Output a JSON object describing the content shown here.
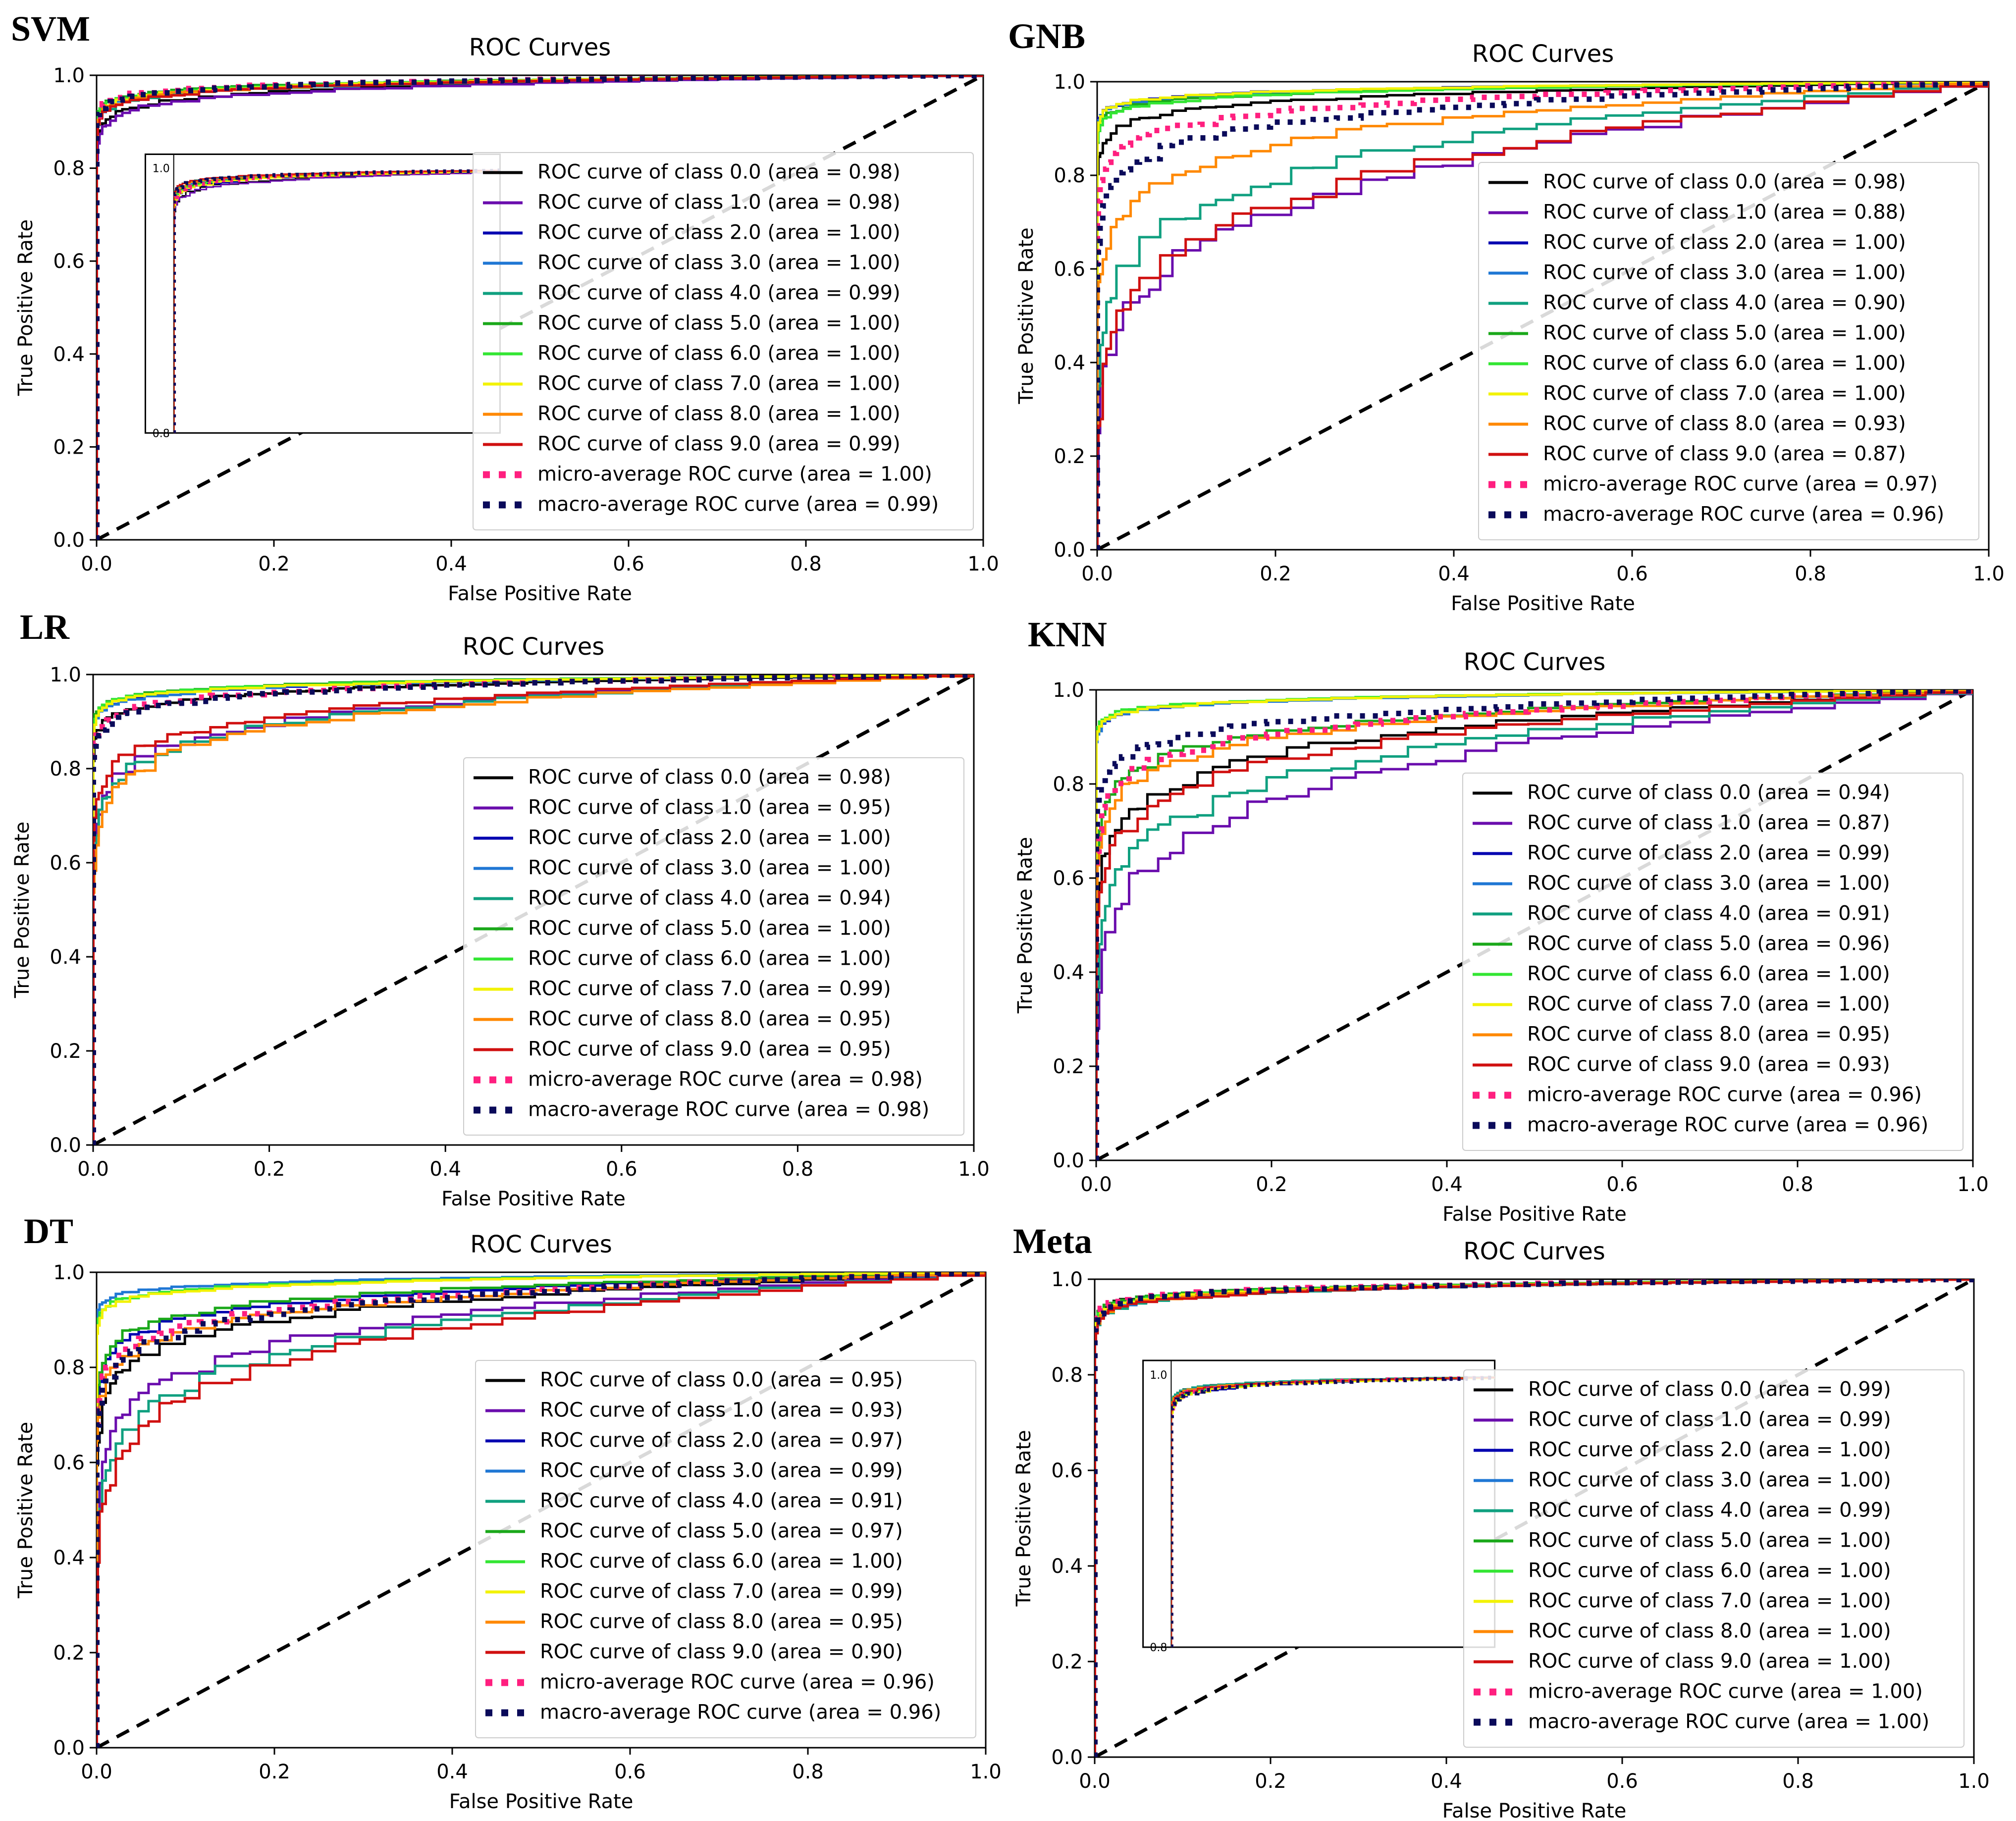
{
  "colors": {
    "class_0": "#000000",
    "class_1": "#6a0dad",
    "class_2": "#0000b0",
    "class_3": "#1f77d4",
    "class_4": "#10a080",
    "class_5": "#1aa81a",
    "class_6": "#33e633",
    "class_7": "#f2f200",
    "class_8": "#ff8800",
    "class_9": "#d01010",
    "micro": "#ff1f7f",
    "macro": "#0a0a5a",
    "diagonal": "#000000"
  },
  "chart_data": [
    {
      "id": "svm",
      "type": "line",
      "panel_label": "SVM",
      "title": "ROC Curves",
      "xlabel": "False Positive Rate",
      "ylabel": "True Positive Rate",
      "xlim": [
        0,
        1
      ],
      "ylim": [
        0,
        1
      ],
      "xticks": [
        "0.0",
        "0.2",
        "0.4",
        "0.6",
        "0.8",
        "1.0"
      ],
      "yticks": [
        "0.0",
        "0.2",
        "0.4",
        "0.6",
        "0.8",
        "1.0"
      ],
      "legend_position": "lower-right",
      "has_inset": true,
      "inset": {
        "ylim": [
          0.8,
          1.0
        ],
        "xlim": [
          0,
          0.35
        ],
        "yticks": [
          "0.8",
          "1.0"
        ]
      },
      "series": [
        {
          "name": "ROC curve of class 0.0 (area = 0.98)",
          "key": "class_0",
          "area": 0.98
        },
        {
          "name": "ROC curve of class 1.0 (area = 0.98)",
          "key": "class_1",
          "area": 0.98
        },
        {
          "name": "ROC curve of class 2.0 (area = 1.00)",
          "key": "class_2",
          "area": 1.0
        },
        {
          "name": "ROC curve of class 3.0 (area = 1.00)",
          "key": "class_3",
          "area": 1.0
        },
        {
          "name": "ROC curve of class 4.0 (area = 0.99)",
          "key": "class_4",
          "area": 0.99
        },
        {
          "name": "ROC curve of class 5.0 (area = 1.00)",
          "key": "class_5",
          "area": 1.0
        },
        {
          "name": "ROC curve of class 6.0 (area = 1.00)",
          "key": "class_6",
          "area": 1.0
        },
        {
          "name": "ROC curve of class 7.0 (area = 1.00)",
          "key": "class_7",
          "area": 1.0
        },
        {
          "name": "ROC curve of class 8.0 (area = 1.00)",
          "key": "class_8",
          "area": 1.0
        },
        {
          "name": "ROC curve of class 9.0 (area = 0.99)",
          "key": "class_9",
          "area": 0.99
        },
        {
          "name": "micro-average ROC curve (area = 1.00)",
          "key": "micro",
          "area": 1.0,
          "dotted": true
        },
        {
          "name": "macro-average ROC curve (area = 0.99)",
          "key": "macro",
          "area": 0.99,
          "dotted": true
        }
      ]
    },
    {
      "id": "gnb",
      "type": "line",
      "panel_label": "GNB",
      "title": "ROC Curves",
      "xlabel": "False Positive Rate",
      "ylabel": "True Positive Rate",
      "xlim": [
        0,
        1
      ],
      "ylim": [
        0,
        1
      ],
      "xticks": [
        "0.0",
        "0.2",
        "0.4",
        "0.6",
        "0.8",
        "1.0"
      ],
      "yticks": [
        "0.0",
        "0.2",
        "0.4",
        "0.6",
        "0.8",
        "1.0"
      ],
      "legend_position": "lower-right",
      "has_inset": false,
      "series": [
        {
          "name": "ROC curve of class 0.0 (area = 0.98)",
          "key": "class_0",
          "area": 0.98
        },
        {
          "name": "ROC curve of class 1.0 (area = 0.88)",
          "key": "class_1",
          "area": 0.88
        },
        {
          "name": "ROC curve of class 2.0 (area = 1.00)",
          "key": "class_2",
          "area": 1.0
        },
        {
          "name": "ROC curve of class 3.0 (area = 1.00)",
          "key": "class_3",
          "area": 1.0
        },
        {
          "name": "ROC curve of class 4.0 (area = 0.90)",
          "key": "class_4",
          "area": 0.9
        },
        {
          "name": "ROC curve of class 5.0 (area = 1.00)",
          "key": "class_5",
          "area": 1.0
        },
        {
          "name": "ROC curve of class 6.0 (area = 1.00)",
          "key": "class_6",
          "area": 1.0
        },
        {
          "name": "ROC curve of class 7.0 (area = 1.00)",
          "key": "class_7",
          "area": 1.0
        },
        {
          "name": "ROC curve of class 8.0 (area = 0.93)",
          "key": "class_8",
          "area": 0.93
        },
        {
          "name": "ROC curve of class 9.0 (area = 0.87)",
          "key": "class_9",
          "area": 0.87
        },
        {
          "name": "micro-average ROC curve (area = 0.97)",
          "key": "micro",
          "area": 0.97,
          "dotted": true
        },
        {
          "name": "macro-average ROC curve (area = 0.96)",
          "key": "macro",
          "area": 0.96,
          "dotted": true
        }
      ]
    },
    {
      "id": "lr",
      "type": "line",
      "panel_label": "LR",
      "title": "ROC Curves",
      "xlabel": "False Positive Rate",
      "ylabel": "True Positive Rate",
      "xlim": [
        0,
        1
      ],
      "ylim": [
        0,
        1
      ],
      "xticks": [
        "0.0",
        "0.2",
        "0.4",
        "0.6",
        "0.8",
        "1.0"
      ],
      "yticks": [
        "0.0",
        "0.2",
        "0.4",
        "0.6",
        "0.8",
        "1.0"
      ],
      "legend_position": "lower-right",
      "has_inset": false,
      "series": [
        {
          "name": "ROC curve of class 0.0 (area = 0.98)",
          "key": "class_0",
          "area": 0.98
        },
        {
          "name": "ROC curve of class 1.0 (area = 0.95)",
          "key": "class_1",
          "area": 0.95
        },
        {
          "name": "ROC curve of class 2.0 (area = 1.00)",
          "key": "class_2",
          "area": 1.0
        },
        {
          "name": "ROC curve of class 3.0 (area = 1.00)",
          "key": "class_3",
          "area": 1.0
        },
        {
          "name": "ROC curve of class 4.0 (area = 0.94)",
          "key": "class_4",
          "area": 0.94
        },
        {
          "name": "ROC curve of class 5.0 (area = 1.00)",
          "key": "class_5",
          "area": 1.0
        },
        {
          "name": "ROC curve of class 6.0 (area = 1.00)",
          "key": "class_6",
          "area": 1.0
        },
        {
          "name": "ROC curve of class 7.0 (area = 0.99)",
          "key": "class_7",
          "area": 0.99
        },
        {
          "name": "ROC curve of class 8.0 (area = 0.95)",
          "key": "class_8",
          "area": 0.95
        },
        {
          "name": "ROC curve of class 9.0 (area = 0.95)",
          "key": "class_9",
          "area": 0.95
        },
        {
          "name": "micro-average ROC curve (area = 0.98)",
          "key": "micro",
          "area": 0.98,
          "dotted": true
        },
        {
          "name": "macro-average ROC curve (area = 0.98)",
          "key": "macro",
          "area": 0.98,
          "dotted": true
        }
      ]
    },
    {
      "id": "knn",
      "type": "line",
      "panel_label": "KNN",
      "title": "ROC Curves",
      "xlabel": "False Positive Rate",
      "ylabel": "True Positive Rate",
      "xlim": [
        0,
        1
      ],
      "ylim": [
        0,
        1
      ],
      "xticks": [
        "0.0",
        "0.2",
        "0.4",
        "0.6",
        "0.8",
        "1.0"
      ],
      "yticks": [
        "0.0",
        "0.2",
        "0.4",
        "0.6",
        "0.8",
        "1.0"
      ],
      "legend_position": "lower-right",
      "has_inset": false,
      "series": [
        {
          "name": "ROC curve of class 0.0 (area = 0.94)",
          "key": "class_0",
          "area": 0.94
        },
        {
          "name": "ROC curve of class 1.0 (area = 0.87)",
          "key": "class_1",
          "area": 0.87
        },
        {
          "name": "ROC curve of class 2.0 (area = 0.99)",
          "key": "class_2",
          "area": 0.99
        },
        {
          "name": "ROC curve of class 3.0 (area = 1.00)",
          "key": "class_3",
          "area": 1.0
        },
        {
          "name": "ROC curve of class 4.0 (area = 0.91)",
          "key": "class_4",
          "area": 0.91
        },
        {
          "name": "ROC curve of class 5.0 (area = 0.96)",
          "key": "class_5",
          "area": 0.96
        },
        {
          "name": "ROC curve of class 6.0 (area = 1.00)",
          "key": "class_6",
          "area": 1.0
        },
        {
          "name": "ROC curve of class 7.0 (area = 1.00)",
          "key": "class_7",
          "area": 1.0
        },
        {
          "name": "ROC curve of class 8.0 (area = 0.95)",
          "key": "class_8",
          "area": 0.95
        },
        {
          "name": "ROC curve of class 9.0 (area = 0.93)",
          "key": "class_9",
          "area": 0.93
        },
        {
          "name": "micro-average ROC curve (area = 0.96)",
          "key": "micro",
          "area": 0.96,
          "dotted": true
        },
        {
          "name": "macro-average ROC curve (area = 0.96)",
          "key": "macro",
          "area": 0.96,
          "dotted": true
        }
      ]
    },
    {
      "id": "dt",
      "type": "line",
      "panel_label": "DT",
      "title": "ROC Curves",
      "xlabel": "False Positive Rate",
      "ylabel": "True Positive Rate",
      "xlim": [
        0,
        1
      ],
      "ylim": [
        0,
        1
      ],
      "xticks": [
        "0.0",
        "0.2",
        "0.4",
        "0.6",
        "0.8",
        "1.0"
      ],
      "yticks": [
        "0.0",
        "0.2",
        "0.4",
        "0.6",
        "0.8",
        "1.0"
      ],
      "legend_position": "lower-right",
      "has_inset": false,
      "series": [
        {
          "name": "ROC curve of class 0.0 (area = 0.95)",
          "key": "class_0",
          "area": 0.95
        },
        {
          "name": "ROC curve of class 1.0 (area = 0.93)",
          "key": "class_1",
          "area": 0.93
        },
        {
          "name": "ROC curve of class 2.0 (area = 0.97)",
          "key": "class_2",
          "area": 0.97
        },
        {
          "name": "ROC curve of class 3.0 (area = 0.99)",
          "key": "class_3",
          "area": 0.99
        },
        {
          "name": "ROC curve of class 4.0 (area = 0.91)",
          "key": "class_4",
          "area": 0.91
        },
        {
          "name": "ROC curve of class 5.0 (area = 0.97)",
          "key": "class_5",
          "area": 0.97
        },
        {
          "name": "ROC curve of class 6.0 (area = 1.00)",
          "key": "class_6",
          "area": 1.0
        },
        {
          "name": "ROC curve of class 7.0 (area = 0.99)",
          "key": "class_7",
          "area": 0.99
        },
        {
          "name": "ROC curve of class 8.0 (area = 0.95)",
          "key": "class_8",
          "area": 0.95
        },
        {
          "name": "ROC curve of class 9.0 (area = 0.90)",
          "key": "class_9",
          "area": 0.9
        },
        {
          "name": "micro-average ROC curve (area = 0.96)",
          "key": "micro",
          "area": 0.96,
          "dotted": true
        },
        {
          "name": "macro-average ROC curve (area = 0.96)",
          "key": "macro",
          "area": 0.96,
          "dotted": true
        }
      ]
    },
    {
      "id": "meta",
      "type": "line",
      "panel_label": "Meta",
      "title": "ROC Curves",
      "xlabel": "False Positive Rate",
      "ylabel": "True Positive Rate",
      "xlim": [
        0,
        1
      ],
      "ylim": [
        0,
        1
      ],
      "xticks": [
        "0.0",
        "0.2",
        "0.4",
        "0.6",
        "0.8",
        "1.0"
      ],
      "yticks": [
        "0.0",
        "0.2",
        "0.4",
        "0.6",
        "0.8",
        "1.0"
      ],
      "legend_position": "lower-right",
      "has_inset": true,
      "inset": {
        "ylim": [
          0.8,
          1.0
        ],
        "xlim": [
          0,
          0.35
        ],
        "yticks": [
          "0.8",
          "1.0"
        ]
      },
      "series": [
        {
          "name": "ROC curve of class 0.0 (area = 0.99)",
          "key": "class_0",
          "area": 0.99
        },
        {
          "name": "ROC curve of class 1.0 (area = 0.99)",
          "key": "class_1",
          "area": 0.99
        },
        {
          "name": "ROC curve of class 2.0 (area = 1.00)",
          "key": "class_2",
          "area": 1.0
        },
        {
          "name": "ROC curve of class 3.0 (area = 1.00)",
          "key": "class_3",
          "area": 1.0
        },
        {
          "name": "ROC curve of class 4.0 (area = 0.99)",
          "key": "class_4",
          "area": 0.99
        },
        {
          "name": "ROC curve of class 5.0 (area = 1.00)",
          "key": "class_5",
          "area": 1.0
        },
        {
          "name": "ROC curve of class 6.0 (area = 1.00)",
          "key": "class_6",
          "area": 1.0
        },
        {
          "name": "ROC curve of class 7.0 (area = 1.00)",
          "key": "class_7",
          "area": 1.0
        },
        {
          "name": "ROC curve of class 8.0 (area = 1.00)",
          "key": "class_8",
          "area": 1.0
        },
        {
          "name": "ROC curve of class 9.0 (area = 1.00)",
          "key": "class_9",
          "area": 1.0
        },
        {
          "name": "micro-average ROC curve (area = 1.00)",
          "key": "micro",
          "area": 1.0,
          "dotted": true
        },
        {
          "name": "macro-average ROC curve (area = 1.00)",
          "key": "macro",
          "area": 1.0,
          "dotted": true
        }
      ]
    }
  ]
}
